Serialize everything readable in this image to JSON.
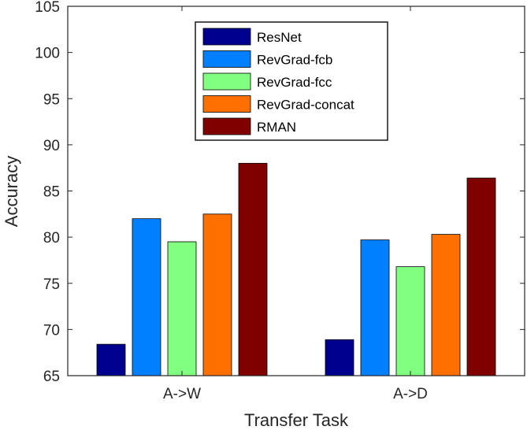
{
  "chart_data": {
    "type": "bar",
    "title": "",
    "xlabel": "Transfer Task",
    "ylabel": "Accuracy",
    "categories": [
      "A->W",
      "A->D"
    ],
    "ylim": [
      65,
      105
    ],
    "yticks": [
      65,
      70,
      75,
      80,
      85,
      90,
      95,
      100,
      105
    ],
    "grid": false,
    "legend_position": "top-center",
    "series": [
      {
        "name": "ResNet",
        "color": "#00008f",
        "values": [
          68.4,
          68.9
        ]
      },
      {
        "name": "RevGrad-fcb",
        "color": "#0080ff",
        "values": [
          82.0,
          79.7
        ]
      },
      {
        "name": "RevGrad-fcc",
        "color": "#80ff80",
        "values": [
          79.5,
          76.8
        ]
      },
      {
        "name": "RevGrad-concat",
        "color": "#ff7000",
        "values": [
          82.5,
          80.3
        ]
      },
      {
        "name": "RMAN",
        "color": "#800000",
        "values": [
          88.0,
          86.4
        ]
      }
    ]
  }
}
